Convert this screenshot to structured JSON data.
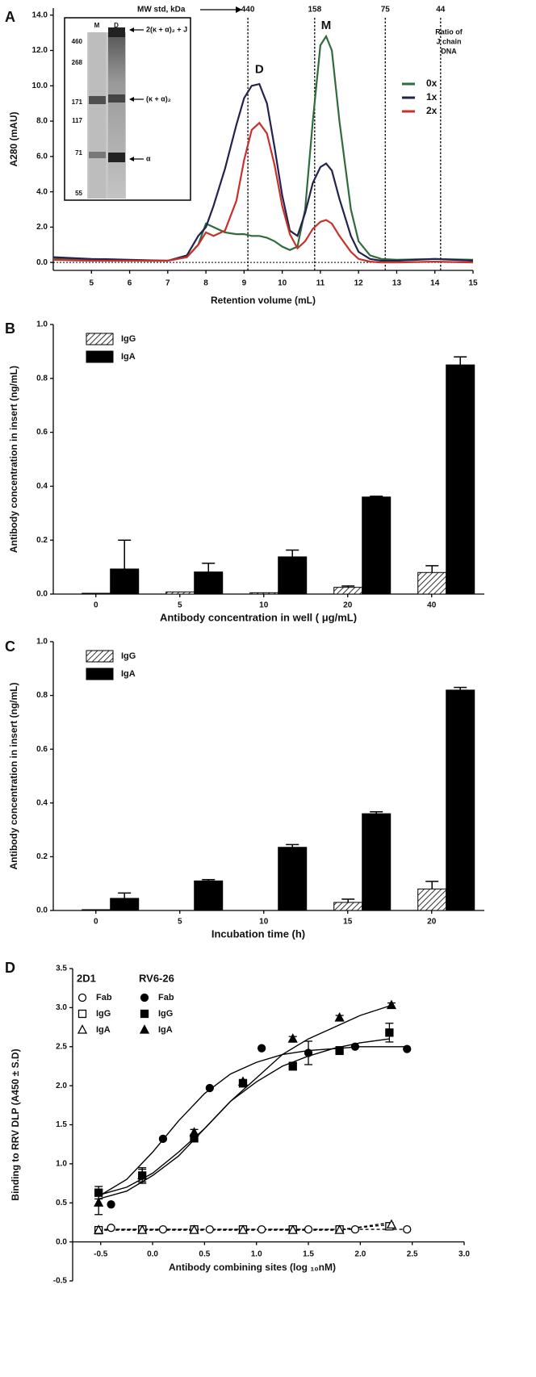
{
  "chart_data": [
    {
      "type": "line",
      "label": "A",
      "xlabel": "Retention volume (mL)",
      "ylabel": "A280 (mAU)",
      "xlim": [
        4,
        15
      ],
      "xticks": [
        5,
        6,
        7,
        8,
        9,
        10,
        11,
        12,
        13,
        14,
        15
      ],
      "ylim": [
        -0.45,
        14.4
      ],
      "yticks": [
        {
          "value": 0,
          "label": "0.0"
        },
        {
          "value": 2,
          "label": "2.0"
        },
        {
          "value": 4,
          "label": "4.0"
        },
        {
          "value": 6,
          "label": "6.0"
        },
        {
          "value": 8,
          "label": "8.0"
        },
        {
          "value": 10,
          "label": "10.0"
        },
        {
          "value": 12,
          "label": "12.0"
        },
        {
          "value": 14,
          "label": "14.0"
        }
      ],
      "x": [
        4,
        4.5,
        5,
        5.5,
        6,
        6.5,
        7,
        7.5,
        7.8,
        8,
        8.2,
        8.5,
        8.8,
        9,
        9.2,
        9.4,
        9.6,
        9.8,
        10,
        10.2,
        10.4,
        10.6,
        10.8,
        11,
        11.15,
        11.3,
        11.5,
        11.8,
        12,
        12.3,
        12.6,
        13,
        14,
        15
      ],
      "legend_title": [
        "Ratio of",
        "J chain",
        "DNA"
      ],
      "series": [
        {
          "name": "0x",
          "color": "#2f6b3b",
          "values": [
            0.25,
            0.2,
            0.18,
            0.15,
            0.12,
            0.1,
            0.1,
            0.3,
            1.0,
            2.2,
            2.0,
            1.7,
            1.6,
            1.6,
            1.5,
            1.5,
            1.4,
            1.2,
            0.9,
            0.7,
            0.9,
            3.0,
            8.0,
            12.3,
            12.8,
            12.0,
            8.0,
            3.0,
            1.2,
            0.4,
            0.2,
            0.15,
            0.2,
            0.15
          ]
        },
        {
          "name": "1x",
          "color": "#22224e",
          "values": [
            0.3,
            0.25,
            0.2,
            0.18,
            0.15,
            0.12,
            0.1,
            0.4,
            1.5,
            2.0,
            3.2,
            5.3,
            7.8,
            9.3,
            10.0,
            10.1,
            9.0,
            6.5,
            3.8,
            1.8,
            1.5,
            2.8,
            4.5,
            5.4,
            5.6,
            5.2,
            3.6,
            1.5,
            0.6,
            0.2,
            0.1,
            0.1,
            0.2,
            0.1
          ]
        },
        {
          "name": "2x",
          "color": "#c8302a",
          "values": [
            0.15,
            0.12,
            0.1,
            0.1,
            0.1,
            0.1,
            0.1,
            0.3,
            1.0,
            1.7,
            1.5,
            1.8,
            3.5,
            5.8,
            7.5,
            7.9,
            7.3,
            5.5,
            3.2,
            1.6,
            0.8,
            1.2,
            1.9,
            2.3,
            2.4,
            2.2,
            1.5,
            0.6,
            0.2,
            0.05,
            0,
            0,
            0.05,
            0
          ]
        }
      ],
      "markers_title": "MW std, kDa",
      "markers": [
        {
          "value": 9.1,
          "label": "440"
        },
        {
          "value": 10.85,
          "label": "158"
        },
        {
          "value": 12.7,
          "label": "75"
        },
        {
          "value": 14.15,
          "label": "44"
        }
      ],
      "annotations": [
        "D",
        "M"
      ],
      "inset": {
        "lanes": [
          "M",
          "D"
        ],
        "mw_markers": [
          "460",
          "268",
          "171",
          "117",
          "71",
          "55"
        ],
        "bands": [
          "2(κ + α)₂ + J",
          "(κ + α)₂",
          "α"
        ]
      }
    },
    {
      "type": "bar",
      "label": "B",
      "xlabel": "Antibody concentration in well ( μg/mL)",
      "ylabel": "Antibody concentration in insert (ng/mL)",
      "categories": [
        "0",
        "5",
        "10",
        "20",
        "40"
      ],
      "ylim": [
        0,
        1.0
      ],
      "yticks": [
        {
          "value": 0,
          "label": "0.0"
        },
        0.2,
        0.4,
        0.6,
        0.8,
        {
          "value": 1.0,
          "label": "1.0"
        }
      ],
      "series": [
        {
          "name": "IgG",
          "color": "hatch",
          "values": [
            0.003,
            0.008,
            0.005,
            0.025,
            0.08
          ],
          "errors": [
            0,
            0,
            0,
            0.005,
            0.025
          ]
        },
        {
          "name": "IgA",
          "color": "#000000",
          "values": [
            0.093,
            0.082,
            0.138,
            0.36,
            0.85
          ],
          "errors": [
            0.107,
            0.032,
            0.025,
            0.003,
            0.03
          ]
        }
      ]
    },
    {
      "type": "bar",
      "label": "C",
      "xlabel": "Incubation time (h)",
      "ylabel": "Antibody concentration in insert (ng/mL)",
      "categories": [
        "0",
        "5",
        "10",
        "15",
        "20"
      ],
      "ylim": [
        0,
        1.0
      ],
      "yticks": [
        {
          "value": 0,
          "label": "0.0"
        },
        0.2,
        0.4,
        0.6,
        0.8,
        {
          "value": 1.0,
          "label": "1.0"
        }
      ],
      "series": [
        {
          "name": "IgG",
          "color": "hatch",
          "values": [
            0.003,
            0,
            0,
            0.03,
            0.08
          ],
          "errors": [
            0,
            0,
            0,
            0.012,
            0.028
          ]
        },
        {
          "name": "IgA",
          "color": "#000000",
          "values": [
            0.045,
            0.11,
            0.235,
            0.36,
            0.82
          ],
          "errors": [
            0.02,
            0.005,
            0.01,
            0.007,
            0.01
          ]
        }
      ]
    },
    {
      "type": "scatter",
      "label": "D",
      "xlabel": "Antibody combining sites (log ₁₀nM)",
      "ylabel": "Binding to RRV DLP (A450 ± S.D)",
      "xlim": [
        -0.77,
        3.0
      ],
      "xticks": [
        -0.5,
        {
          "value": 0,
          "label": "0.0"
        },
        0.5,
        {
          "value": 1.0,
          "label": "1.0"
        },
        1.5,
        {
          "value": 2.0,
          "label": "2.0"
        },
        2.5,
        {
          "value": 3.0,
          "label": "3.0"
        }
      ],
      "ylim": [
        -0.5,
        3.5
      ],
      "yticks": [
        -0.5,
        {
          "value": 0,
          "label": "0.0"
        },
        0.5,
        {
          "value": 1.0,
          "label": "1.0"
        },
        1.5,
        {
          "value": 2.0,
          "label": "2.0"
        },
        2.5,
        {
          "value": 3.0,
          "label": "3.0"
        },
        3.5
      ],
      "groups": [
        {
          "name": "2D1",
          "filled": false,
          "dashed": true,
          "series": [
            {
              "name": "Fab",
              "marker": "circle",
              "x": [
                -0.4,
                0.1,
                0.55,
                1.05,
                1.5,
                1.95,
                2.45
              ],
              "values": [
                0.18,
                0.16,
                0.16,
                0.16,
                0.16,
                0.16,
                0.16
              ]
            },
            {
              "name": "IgG",
              "marker": "square",
              "x": [
                -0.52,
                -0.1,
                0.4,
                0.87,
                1.35,
                1.8,
                2.28
              ],
              "values": [
                0.15,
                0.16,
                0.16,
                0.16,
                0.16,
                0.16,
                0.2
              ]
            },
            {
              "name": "IgA",
              "marker": "triangle",
              "x": [
                -0.52,
                -0.1,
                0.4,
                0.87,
                1.35,
                1.8,
                2.3
              ],
              "values": [
                0.15,
                0.15,
                0.15,
                0.15,
                0.15,
                0.15,
                0.22
              ]
            }
          ],
          "curves": [
            {
              "x": [
                -0.4,
                2.45
              ],
              "y": [
                0.16,
                0.16
              ]
            },
            {
              "x": [
                -0.52,
                1.8,
                2.28
              ],
              "y": [
                0.16,
                0.16,
                0.22
              ]
            },
            {
              "x": [
                -0.52,
                1.8,
                2.3
              ],
              "y": [
                0.15,
                0.15,
                0.25
              ]
            }
          ]
        },
        {
          "name": "RV6-26",
          "filled": true,
          "dashed": false,
          "series": [
            {
              "name": "Fab",
              "marker": "circle",
              "x": [
                -0.4,
                0.1,
                0.55,
                1.05,
                1.5,
                1.95,
                2.45
              ],
              "values": [
                0.48,
                1.32,
                1.97,
                2.48,
                2.42,
                2.5,
                2.47
              ],
              "errors": [
                0,
                0,
                0,
                0,
                0.15,
                0,
                0
              ]
            },
            {
              "name": "IgG",
              "marker": "square",
              "x": [
                -0.52,
                -0.1,
                0.4,
                0.87,
                1.35,
                1.8,
                2.28
              ],
              "values": [
                0.63,
                0.85,
                1.33,
                2.03,
                2.25,
                2.45,
                2.68
              ],
              "errors": [
                0.08,
                0.1,
                0.05,
                0.03,
                0.05,
                0.05,
                0.12
              ]
            },
            {
              "name": "IgA",
              "marker": "triangle",
              "x": [
                -0.52,
                -0.1,
                0.4,
                0.87,
                1.35,
                1.8,
                2.3
              ],
              "values": [
                0.5,
                0.85,
                1.4,
                2.05,
                2.6,
                2.87,
                3.03
              ],
              "errors": [
                0.15,
                0.08,
                0.04,
                0.03,
                0.03,
                0.03,
                0.03
              ]
            }
          ],
          "curves": [
            {
              "x": [
                -0.5,
                -0.25,
                0,
                0.25,
                0.5,
                0.75,
                1,
                1.25,
                1.5,
                2,
                2.45
              ],
              "y": [
                0.6,
                0.8,
                1.15,
                1.55,
                1.9,
                2.15,
                2.3,
                2.4,
                2.45,
                2.5,
                2.5
              ]
            },
            {
              "x": [
                -0.52,
                -0.25,
                0,
                0.25,
                0.5,
                0.75,
                1,
                1.25,
                1.5,
                1.75,
                2,
                2.28
              ],
              "y": [
                0.6,
                0.7,
                0.88,
                1.15,
                1.45,
                1.8,
                2.05,
                2.25,
                2.38,
                2.48,
                2.55,
                2.6
              ]
            },
            {
              "x": [
                -0.52,
                -0.25,
                0,
                0.25,
                0.5,
                0.75,
                1,
                1.25,
                1.5,
                1.75,
                2,
                2.3
              ],
              "y": [
                0.55,
                0.65,
                0.85,
                1.1,
                1.45,
                1.8,
                2.1,
                2.4,
                2.6,
                2.75,
                2.9,
                3.03
              ]
            }
          ]
        }
      ]
    }
  ]
}
